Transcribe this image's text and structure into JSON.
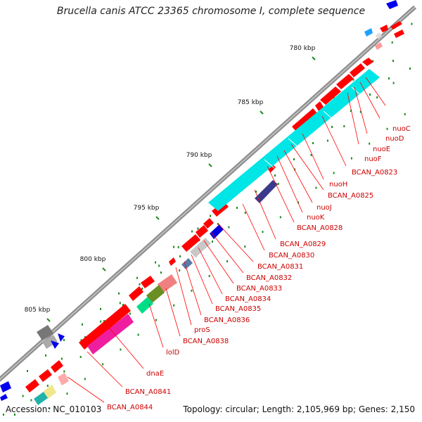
{
  "title": "Brucella canis ATCC 23365 chromosome I, complete sequence",
  "footer": {
    "accession": "Accession: NC_010103",
    "summary": "Topology: circular; Length: 2,105,969 bp; Genes: 2,150"
  },
  "colors": {
    "backbone": "#8c8c8c",
    "forward_cds": "#ff0000",
    "reverse_cds": "#00e5e5",
    "tick": "#1e8c1e",
    "label_line": "#ff0000",
    "label_text": "#cc0000"
  },
  "scale_ticks": [
    {
      "label": "780 kbp"
    },
    {
      "label": "785 kbp"
    },
    {
      "label": "790 kbp"
    },
    {
      "label": "795 kbp"
    },
    {
      "label": "800 kbp"
    },
    {
      "label": "805 kbp"
    }
  ],
  "gene_labels": [
    {
      "label": "nuoC"
    },
    {
      "label": "nuoD"
    },
    {
      "label": "nuoE"
    },
    {
      "label": "nuoF"
    },
    {
      "label": "BCAN_A0823"
    },
    {
      "label": "nuoH"
    },
    {
      "label": "BCAN_A0825"
    },
    {
      "label": "nuoJ"
    },
    {
      "label": "nuoK"
    },
    {
      "label": "BCAN_A0828"
    },
    {
      "label": "BCAN_A0829"
    },
    {
      "label": "BCAN_A0830"
    },
    {
      "label": "BCAN_A0831"
    },
    {
      "label": "BCAN_A0832"
    },
    {
      "label": "BCAN_A0833"
    },
    {
      "label": "BCAN_A0834"
    },
    {
      "label": "BCAN_A0835"
    },
    {
      "label": "BCAN_A0836"
    },
    {
      "label": "proS"
    },
    {
      "label": "BCAN_A0838"
    },
    {
      "label": "lolD"
    },
    {
      "label": "dnaE"
    },
    {
      "label": "BCAN_A0841"
    },
    {
      "label": "BCAN_A0844"
    }
  ]
}
